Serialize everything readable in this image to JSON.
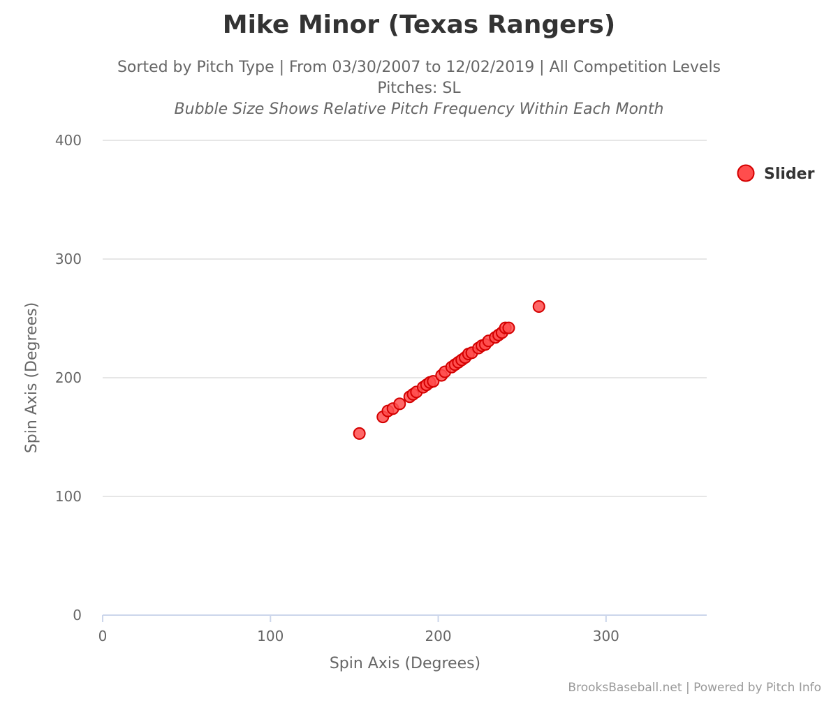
{
  "chart_data": {
    "type": "scatter",
    "title": "Mike Minor (Texas Rangers)",
    "subtitle_line1": "Sorted by Pitch Type | From 03/30/2007 to 12/02/2019 | All Competition Levels",
    "subtitle_line2": "Pitches: SL",
    "subtitle_line3": "Bubble Size Shows Relative Pitch Frequency Within Each Month",
    "xlabel": "Spin Axis (Degrees)",
    "ylabel": "Spin Axis (Degrees)",
    "xlim": [
      0,
      360
    ],
    "ylim": [
      0,
      400
    ],
    "x_ticks": [
      0,
      100,
      200,
      300
    ],
    "y_ticks": [
      0,
      100,
      200,
      300,
      400
    ],
    "grid": true,
    "legend_position": "top-right",
    "credits": "BrooksBaseball.net | Powered by Pitch Info",
    "series": [
      {
        "name": "Slider",
        "color": "#ff4d4d",
        "points": [
          {
            "x": 153,
            "y": 153
          },
          {
            "x": 167,
            "y": 167
          },
          {
            "x": 170,
            "y": 172
          },
          {
            "x": 173,
            "y": 174
          },
          {
            "x": 177,
            "y": 178
          },
          {
            "x": 183,
            "y": 184
          },
          {
            "x": 185,
            "y": 186
          },
          {
            "x": 187,
            "y": 188
          },
          {
            "x": 191,
            "y": 192
          },
          {
            "x": 193,
            "y": 194
          },
          {
            "x": 195,
            "y": 196
          },
          {
            "x": 197,
            "y": 197
          },
          {
            "x": 202,
            "y": 202
          },
          {
            "x": 204,
            "y": 205
          },
          {
            "x": 208,
            "y": 209
          },
          {
            "x": 210,
            "y": 211
          },
          {
            "x": 212,
            "y": 213
          },
          {
            "x": 214,
            "y": 215
          },
          {
            "x": 216,
            "y": 217
          },
          {
            "x": 218,
            "y": 220
          },
          {
            "x": 220,
            "y": 221
          },
          {
            "x": 224,
            "y": 225
          },
          {
            "x": 226,
            "y": 227
          },
          {
            "x": 228,
            "y": 228
          },
          {
            "x": 230,
            "y": 231
          },
          {
            "x": 234,
            "y": 234
          },
          {
            "x": 236,
            "y": 236
          },
          {
            "x": 238,
            "y": 238
          },
          {
            "x": 240,
            "y": 242
          },
          {
            "x": 242,
            "y": 242
          },
          {
            "x": 260,
            "y": 260
          }
        ]
      }
    ]
  }
}
